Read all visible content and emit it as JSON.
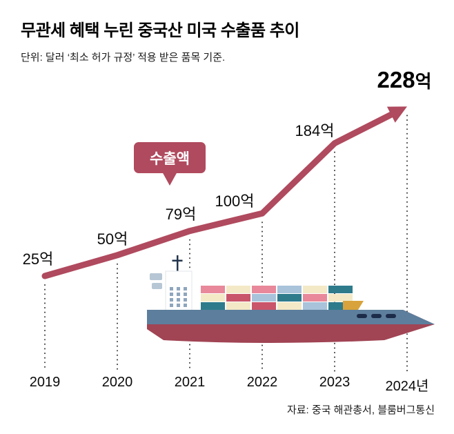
{
  "colors": {
    "accent": "#b04a5e",
    "badge_text": "#ffffff",
    "ship_hull": "#a14454",
    "ship_deck": "#5d7e9c"
  },
  "header": {
    "title": "무관세 혜택 누린 중국산 미국 수출품 추이",
    "subtitle": "단위: 달러 ‘최소 허가 규정’ 적용 받은 품목 기준."
  },
  "badge": {
    "label": "수출액"
  },
  "footer": {
    "source": "자료: 중국 해관총서, 블룸버그통신"
  },
  "chart_data": {
    "type": "line",
    "title": "무관세 혜택 누린 중국산 미국 수출품 추이",
    "subtitle": "단위: 달러 ‘최소 허가 규정’ 적용 받은 품목 기준.",
    "categories": [
      "2019",
      "2020",
      "2021",
      "2022",
      "2023",
      "2024년"
    ],
    "values": [
      25,
      50,
      79,
      100,
      184,
      228
    ],
    "unit": "억",
    "series": [
      {
        "name": "수출액",
        "values": [
          25,
          50,
          79,
          100,
          184,
          228
        ]
      }
    ],
    "data_labels": [
      "25억",
      "50억",
      "79억",
      "100억",
      "184억",
      "228억"
    ],
    "emphasis_index": 5,
    "xlabel": "",
    "ylabel": "",
    "ylim": [
      0,
      240
    ],
    "grid": "dotted-vertical-leaders",
    "legend_position": "callout-badge",
    "line_color": "#b04a5e",
    "source": "자료: 중국 해관총서, 블룸버그통신"
  }
}
